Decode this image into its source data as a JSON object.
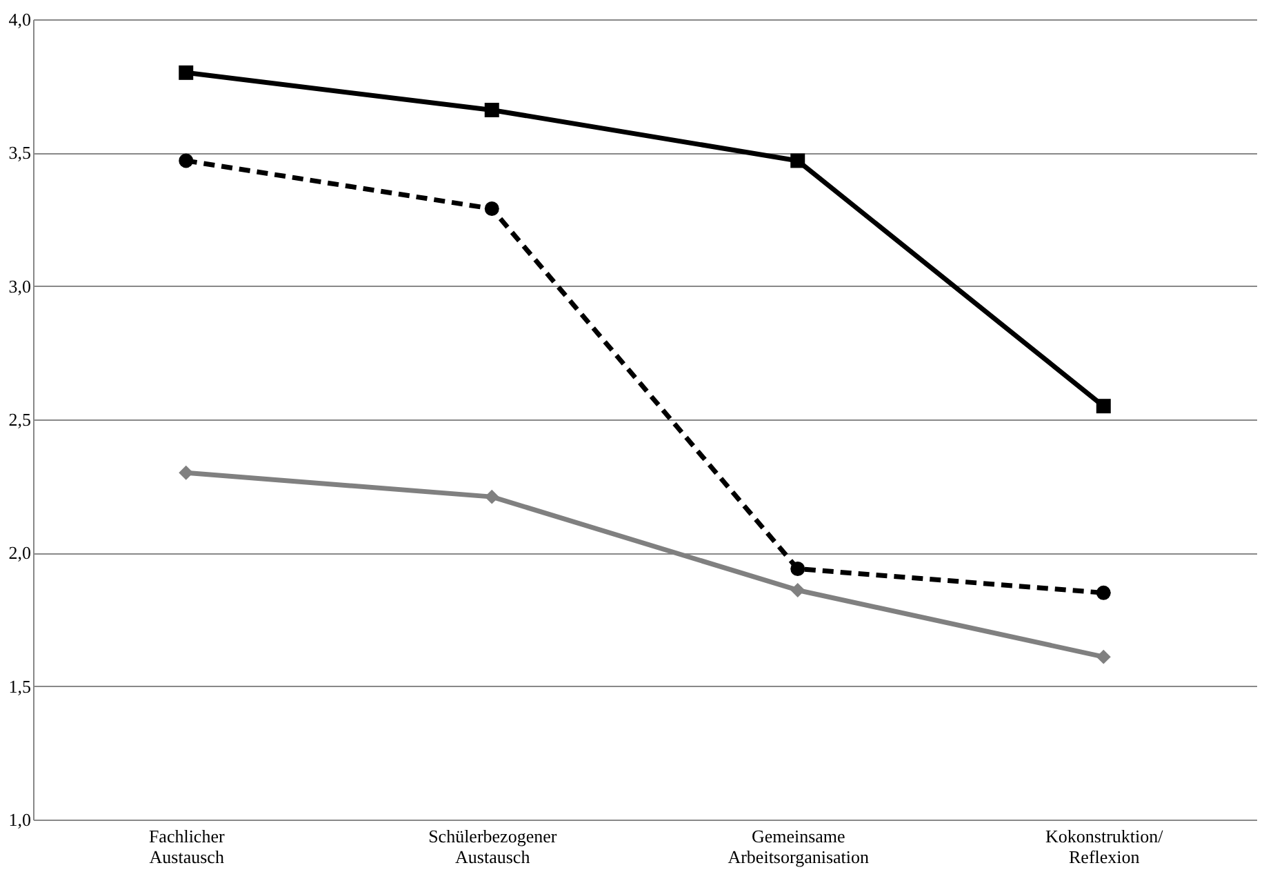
{
  "chart_data": {
    "type": "line",
    "categories": [
      "Fachlicher Austausch",
      "Schülerbezogener Austausch",
      "Gemeinsame Arbeitsorganisation",
      "Kokonstruktion/ Reflexion"
    ],
    "series": [
      {
        "color": "#000000",
        "marker": "square",
        "line_style": "solid",
        "values": [
          3.8,
          3.66,
          3.47,
          2.55
        ]
      },
      {
        "color": "#000000",
        "marker": "circle",
        "line_style": "dashed",
        "values": [
          3.47,
          3.29,
          1.94,
          1.85
        ]
      },
      {
        "color": "#808080",
        "marker": "diamond",
        "line_style": "solid",
        "values": [
          2.3,
          2.21,
          1.86,
          1.61
        ]
      }
    ],
    "ylim": [
      1,
      4
    ],
    "yticks": [
      {
        "value": 1,
        "label": "1,0"
      },
      {
        "value": 1.5,
        "label": "1,5"
      },
      {
        "value": 2,
        "label": "2,0"
      },
      {
        "value": 2.5,
        "label": "2,5"
      },
      {
        "value": 3,
        "label": "3,0"
      },
      {
        "value": 3.5,
        "label": "3,5"
      },
      {
        "value": 4,
        "label": "4,0"
      }
    ],
    "grid": "y"
  }
}
